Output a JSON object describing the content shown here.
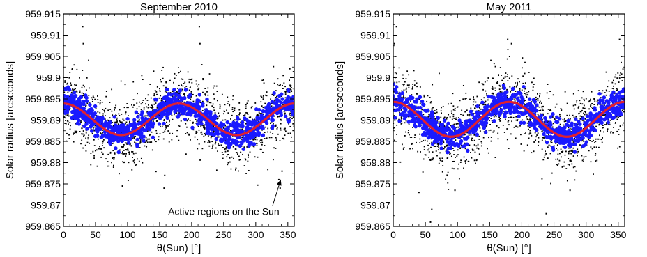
{
  "chart_data": [
    {
      "type": "scatter",
      "title": "September 2010",
      "xlabel": "θ(Sun) [°]",
      "ylabel": "Solar radius [arcseconds]",
      "xlim": [
        0,
        360
      ],
      "ylim": [
        959.865,
        959.915
      ],
      "xticks": [
        0,
        50,
        100,
        150,
        200,
        250,
        300,
        350
      ],
      "yticks": [
        959.865,
        959.87,
        959.875,
        959.88,
        959.885,
        959.89,
        959.895,
        959.9,
        959.905,
        959.91,
        959.915
      ],
      "ytick_labels": [
        "959.865",
        "959.87",
        "959.875",
        "959.88",
        "959.885",
        "959.89",
        "959.895",
        "959.9",
        "959.905",
        "959.91",
        "959.915"
      ],
      "grid": false,
      "fit_curve": {
        "kind": "sinusoid",
        "mean": 959.8902,
        "amplitude": 0.0037,
        "period_deg": 180,
        "peak_at_deg": 0,
        "color": "#e02030"
      },
      "series": [
        {
          "marker": "small black dots",
          "color": "#000000",
          "center": 959.8902,
          "spread": 0.004,
          "n": 1600
        },
        {
          "marker": "large blue dots",
          "color": "#1a1aff",
          "center": 959.8902,
          "spread": 0.0016,
          "n": 900
        }
      ],
      "outliers": [
        {
          "x": 30,
          "y": 959.912
        },
        {
          "x": 31,
          "y": 959.908
        },
        {
          "x": 212,
          "y": 959.912
        },
        {
          "x": 213,
          "y": 959.908
        },
        {
          "x": 157,
          "y": 959.874
        },
        {
          "x": 158,
          "y": 959.877
        },
        {
          "x": 92,
          "y": 959.8745
        },
        {
          "x": 338,
          "y": 959.874
        },
        {
          "x": 336,
          "y": 959.876
        },
        {
          "x": 341,
          "y": 959.878
        }
      ],
      "annotations": [
        {
          "text": "Active regions on the Sun",
          "arrow_to": {
            "x": 339,
            "y": 959.876
          },
          "anchor": {
            "x": 250,
            "y": 959.8685
          }
        }
      ]
    },
    {
      "type": "scatter",
      "title": "May 2011",
      "xlabel": "θ(Sun) [°]",
      "ylabel": "Solar radius [arcseconds]",
      "xlim": [
        0,
        360
      ],
      "ylim": [
        959.865,
        959.915
      ],
      "xticks": [
        0,
        50,
        100,
        150,
        200,
        250,
        300,
        350
      ],
      "yticks": [
        959.865,
        959.87,
        959.875,
        959.88,
        959.885,
        959.89,
        959.895,
        959.9,
        959.905,
        959.91,
        959.915
      ],
      "ytick_labels": [
        "959.865",
        "959.87",
        "959.875",
        "959.88",
        "959.885",
        "959.89",
        "959.895",
        "959.9",
        "959.905",
        "959.91",
        "959.915"
      ],
      "grid": false,
      "fit_curve": {
        "kind": "sinusoid",
        "mean": 959.8902,
        "amplitude": 0.0041,
        "period_deg": 180,
        "peak_at_deg": 0,
        "color": "#e02030"
      },
      "series": [
        {
          "marker": "small black dots",
          "color": "#000000",
          "center": 959.8902,
          "spread": 0.0042,
          "n": 1600
        },
        {
          "marker": "large blue dots",
          "color": "#1a1aff",
          "center": 959.8902,
          "spread": 0.0017,
          "n": 900
        }
      ],
      "outliers": [
        {
          "x": 3,
          "y": 959.905
        },
        {
          "x": 5,
          "y": 959.912
        },
        {
          "x": 2,
          "y": 959.908
        },
        {
          "x": 178,
          "y": 959.909
        },
        {
          "x": 184,
          "y": 959.908
        },
        {
          "x": 181,
          "y": 959.905
        },
        {
          "x": 58,
          "y": 959.866
        },
        {
          "x": 60,
          "y": 959.869
        },
        {
          "x": 240,
          "y": 959.8655
        },
        {
          "x": 238,
          "y": 959.868
        },
        {
          "x": 352,
          "y": 959.909
        },
        {
          "x": 355,
          "y": 959.905
        },
        {
          "x": 40,
          "y": 959.873
        },
        {
          "x": 96,
          "y": 959.8735
        },
        {
          "x": 275,
          "y": 959.8735
        }
      ],
      "annotations": []
    }
  ]
}
